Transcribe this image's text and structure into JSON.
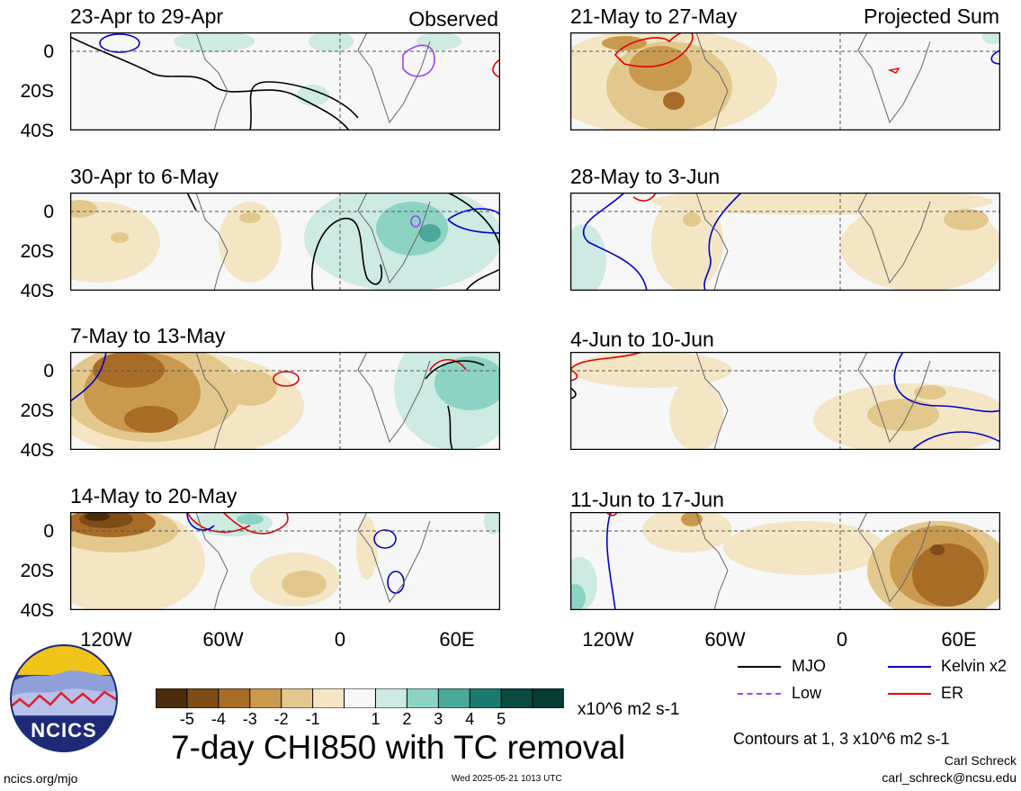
{
  "header": {
    "observed_label": "Observed",
    "projected_label": "Projected Sum"
  },
  "panels": [
    {
      "title": "23-Apr to 29-Apr"
    },
    {
      "title": "30-Apr to 6-May"
    },
    {
      "title": "7-May to 13-May"
    },
    {
      "title": "14-May to 20-May"
    },
    {
      "title": "21-May to 27-May"
    },
    {
      "title": "28-May to 3-Jun"
    },
    {
      "title": "4-Jun to 10-Jun"
    },
    {
      "title": "11-Jun to 17-Jun"
    }
  ],
  "axes": {
    "y_ticks": [
      "0",
      "20S",
      "40S"
    ],
    "x_ticks": [
      "120W",
      "60W",
      "0",
      "60E"
    ]
  },
  "colorbar": {
    "labels": [
      "-5",
      "-4",
      "-3",
      "-2",
      "-1",
      "1",
      "2",
      "3",
      "4",
      "5"
    ],
    "colors": [
      "#4a2e0c",
      "#7d4d15",
      "#a96c27",
      "#c99a4e",
      "#e3c88e",
      "#f4e6c4",
      "#f7f7f7",
      "#cdeae3",
      "#8dd3c4",
      "#4ba89a",
      "#1b7a6e",
      "#0b4a40",
      "#073c34"
    ],
    "units": "x10^6 m2 s-1"
  },
  "legend": {
    "items": [
      {
        "label": "MJO",
        "color": "#000000"
      },
      {
        "label": "Kelvin x2",
        "color": "#0000cc"
      },
      {
        "label": "Low",
        "color": "#a040ff"
      },
      {
        "label": "ER",
        "color": "#e00000"
      }
    ],
    "contours_note": "Contours at 1, 3 x10^6 m2 s-1"
  },
  "title": "7-day CHI850 with TC removal",
  "footer": {
    "site": "ncics.org/mjo",
    "timestamp": "Wed 2025-05-21 1013 UTC",
    "author": "Carl Schreck",
    "email": "carl_schreck@ncsu.edu",
    "logo_text": "NCICS"
  }
}
